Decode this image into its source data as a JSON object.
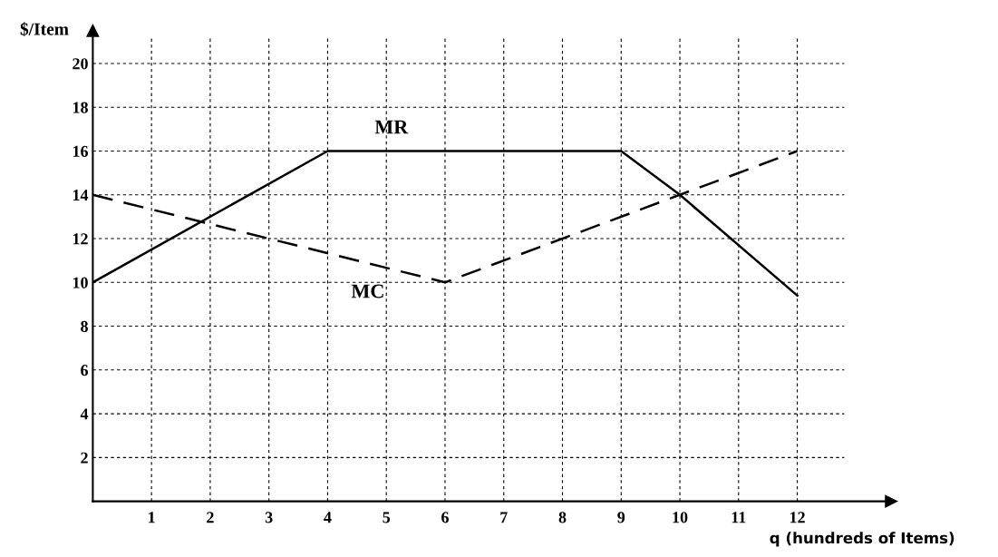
{
  "chart_data": {
    "type": "line",
    "xlabel": "q (hundreds of Items)",
    "ylabel": "$/Item",
    "series": [
      {
        "name": "MR",
        "color": "#000000",
        "line_style": "solid",
        "x": [
          0,
          4,
          9,
          10,
          12
        ],
        "values": [
          10,
          16,
          16,
          14,
          9.4
        ]
      },
      {
        "name": "MC",
        "color": "#000000",
        "line_style": "dashed",
        "x": [
          0,
          6,
          12
        ],
        "values": [
          14,
          10,
          16
        ]
      }
    ],
    "xlim": [
      0,
      13.6
    ],
    "ylim": [
      0,
      21.5
    ],
    "xticks": [
      1,
      2,
      3,
      4,
      5,
      6,
      7,
      8,
      9,
      10,
      11,
      12
    ],
    "yticks": [
      2,
      4,
      6,
      8,
      10,
      12,
      14,
      16,
      18,
      20
    ],
    "grid": true,
    "legend": false,
    "marker": "none"
  }
}
